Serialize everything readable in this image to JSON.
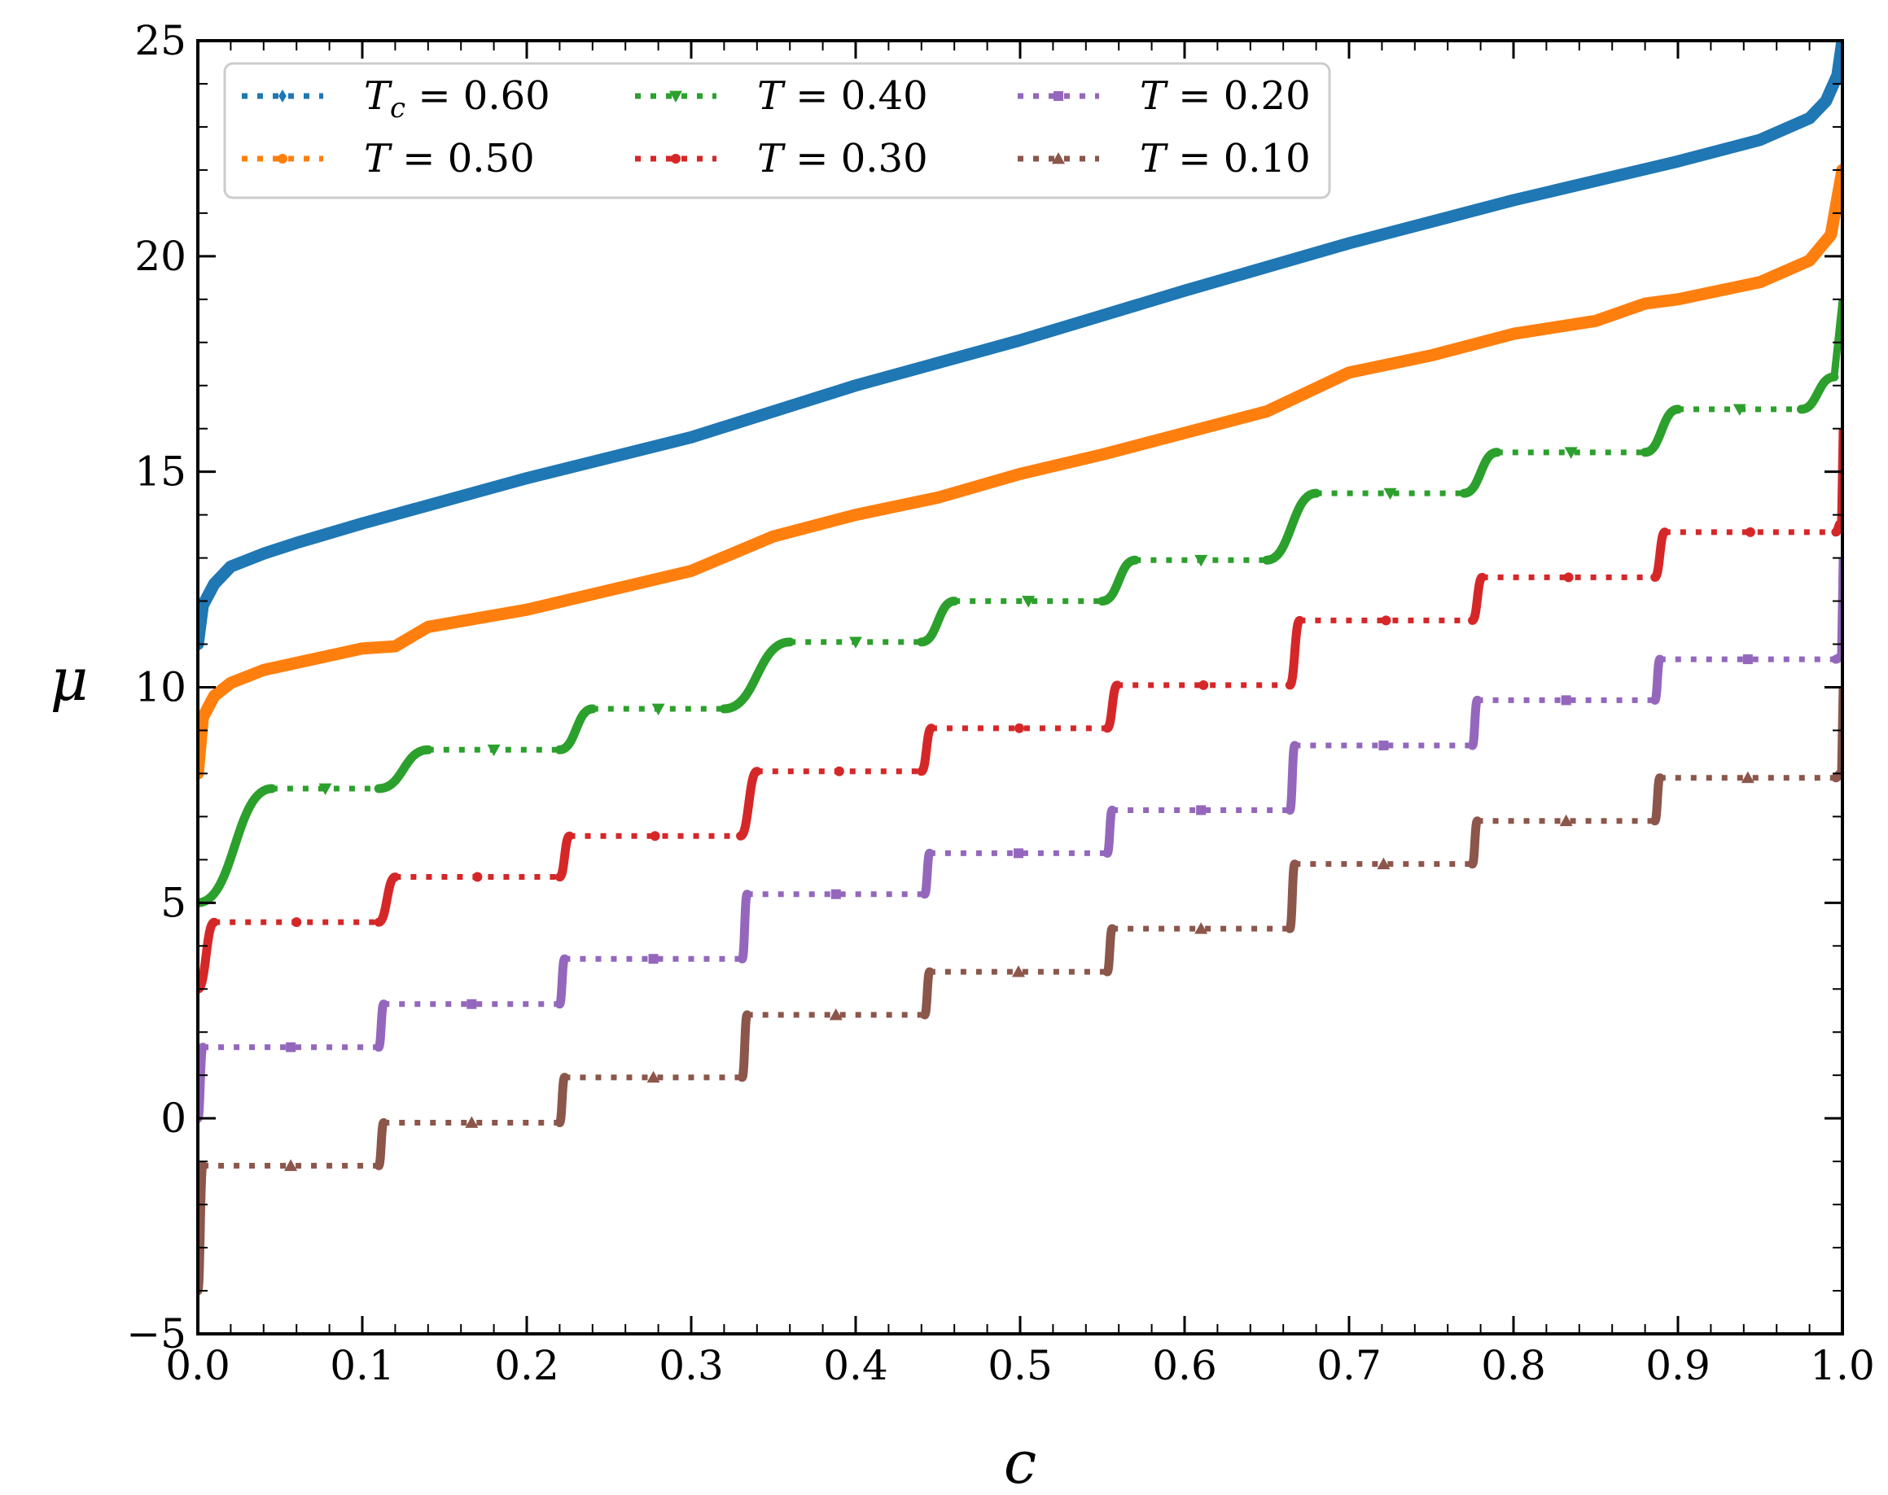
{
  "chart_data": {
    "type": "line",
    "title": "",
    "xlabel": "c",
    "ylabel": "μ",
    "xlim": [
      0.0,
      1.0
    ],
    "ylim": [
      -5,
      25
    ],
    "xticks": [
      "0.0",
      "0.1",
      "0.2",
      "0.3",
      "0.4",
      "0.5",
      "0.6",
      "0.7",
      "0.8",
      "0.9",
      "1.0"
    ],
    "yticks": [
      "−5",
      "0",
      "5",
      "10",
      "15",
      "20",
      "25"
    ],
    "grid": false,
    "legend_position": "top-left",
    "series": [
      {
        "name": "Tc = 0.60",
        "label_var": "T",
        "label_sub": "c",
        "label_rest": " = 0.60",
        "color": "#1f77b4",
        "marker": "diamond",
        "kind": "smooth",
        "points": [
          [
            0.0,
            11.0
          ],
          [
            0.003,
            11.9
          ],
          [
            0.01,
            12.4
          ],
          [
            0.02,
            12.8
          ],
          [
            0.04,
            13.1
          ],
          [
            0.06,
            13.35
          ],
          [
            0.1,
            13.8
          ],
          [
            0.2,
            14.85
          ],
          [
            0.3,
            15.8
          ],
          [
            0.4,
            17.0
          ],
          [
            0.5,
            18.05
          ],
          [
            0.6,
            19.2
          ],
          [
            0.7,
            20.3
          ],
          [
            0.8,
            21.3
          ],
          [
            0.9,
            22.2
          ],
          [
            0.95,
            22.7
          ],
          [
            0.98,
            23.2
          ],
          [
            0.99,
            23.6
          ],
          [
            0.997,
            24.2
          ],
          [
            1.0,
            25.0
          ]
        ]
      },
      {
        "name": "T = 0.50",
        "label_var": "T",
        "label_sub": "",
        "label_rest": " = 0.50",
        "color": "#ff7f0e",
        "marker": "circle",
        "kind": "smooth",
        "points": [
          [
            0.0,
            8.0
          ],
          [
            0.003,
            9.3
          ],
          [
            0.01,
            9.8
          ],
          [
            0.02,
            10.1
          ],
          [
            0.04,
            10.4
          ],
          [
            0.1,
            10.9
          ],
          [
            0.12,
            10.95
          ],
          [
            0.14,
            11.4
          ],
          [
            0.2,
            11.8
          ],
          [
            0.3,
            12.7
          ],
          [
            0.35,
            13.5
          ],
          [
            0.4,
            14.0
          ],
          [
            0.45,
            14.4
          ],
          [
            0.5,
            14.95
          ],
          [
            0.55,
            15.4
          ],
          [
            0.6,
            15.9
          ],
          [
            0.65,
            16.4
          ],
          [
            0.7,
            17.3
          ],
          [
            0.75,
            17.7
          ],
          [
            0.8,
            18.2
          ],
          [
            0.85,
            18.5
          ],
          [
            0.88,
            18.9
          ],
          [
            0.9,
            19.0
          ],
          [
            0.95,
            19.4
          ],
          [
            0.98,
            19.9
          ],
          [
            0.993,
            20.5
          ],
          [
            1.0,
            22.0
          ]
        ]
      },
      {
        "name": "T = 0.40",
        "label_var": "T",
        "label_sub": "",
        "label_rest": " = 0.40",
        "color": "#2ca02c",
        "marker": "triangle-down",
        "kind": "steps",
        "tail_top": 19.0,
        "levels": [
          {
            "x0": 0.0,
            "y0": 5.0,
            "x1": 0.045,
            "y1": 7.65
          },
          {
            "x0": 0.11,
            "y0": 7.65,
            "x1": 0.14,
            "y1": 8.55
          },
          {
            "x0": 0.22,
            "y0": 8.55,
            "x1": 0.24,
            "y1": 9.5
          },
          {
            "x0": 0.32,
            "y0": 9.5,
            "x1": 0.36,
            "y1": 11.05
          },
          {
            "x0": 0.44,
            "y0": 11.05,
            "x1": 0.46,
            "y1": 12.0
          },
          {
            "x0": 0.55,
            "y0": 12.0,
            "x1": 0.57,
            "y1": 12.95
          },
          {
            "x0": 0.65,
            "y0": 12.95,
            "x1": 0.68,
            "y1": 14.5
          },
          {
            "x0": 0.77,
            "y0": 14.5,
            "x1": 0.79,
            "y1": 15.45
          },
          {
            "x0": 0.88,
            "y0": 15.45,
            "x1": 0.9,
            "y1": 16.45
          },
          {
            "x0": 0.975,
            "y0": 16.45,
            "x1": 0.995,
            "y1": 17.2
          }
        ]
      },
      {
        "name": "T = 0.30",
        "label_var": "T",
        "label_sub": "",
        "label_rest": " = 0.30",
        "color": "#d62728",
        "marker": "circle",
        "kind": "steps",
        "tail_top": 16.0,
        "levels": [
          {
            "x0": 0.0,
            "y0": 3.0,
            "x1": 0.01,
            "y1": 4.55
          },
          {
            "x0": 0.11,
            "y0": 4.55,
            "x1": 0.12,
            "y1": 5.6
          },
          {
            "x0": 0.22,
            "y0": 5.6,
            "x1": 0.226,
            "y1": 6.55
          },
          {
            "x0": 0.33,
            "y0": 6.55,
            "x1": 0.34,
            "y1": 8.05
          },
          {
            "x0": 0.44,
            "y0": 8.05,
            "x1": 0.446,
            "y1": 9.05
          },
          {
            "x0": 0.553,
            "y0": 9.05,
            "x1": 0.559,
            "y1": 10.05
          },
          {
            "x0": 0.664,
            "y0": 10.05,
            "x1": 0.67,
            "y1": 11.55
          },
          {
            "x0": 0.775,
            "y0": 11.55,
            "x1": 0.781,
            "y1": 12.55
          },
          {
            "x0": 0.886,
            "y0": 12.55,
            "x1": 0.892,
            "y1": 13.6
          },
          {
            "x0": 0.996,
            "y0": 13.6,
            "x1": 0.999,
            "y1": 13.8
          }
        ]
      },
      {
        "name": "T = 0.20",
        "label_var": "T",
        "label_sub": "",
        "label_rest": " = 0.20",
        "color": "#9467bd",
        "marker": "square",
        "kind": "steps",
        "tail_top": 13.0,
        "levels": [
          {
            "x0": 0.0,
            "y0": 0.0,
            "x1": 0.003,
            "y1": 1.65
          },
          {
            "x0": 0.11,
            "y0": 1.65,
            "x1": 0.113,
            "y1": 2.65
          },
          {
            "x0": 0.22,
            "y0": 2.65,
            "x1": 0.223,
            "y1": 3.7
          },
          {
            "x0": 0.331,
            "y0": 3.7,
            "x1": 0.334,
            "y1": 5.2
          },
          {
            "x0": 0.442,
            "y0": 5.2,
            "x1": 0.445,
            "y1": 6.15
          },
          {
            "x0": 0.553,
            "y0": 6.15,
            "x1": 0.556,
            "y1": 7.15
          },
          {
            "x0": 0.664,
            "y0": 7.15,
            "x1": 0.667,
            "y1": 8.65
          },
          {
            "x0": 0.775,
            "y0": 8.65,
            "x1": 0.778,
            "y1": 9.7
          },
          {
            "x0": 0.886,
            "y0": 9.7,
            "x1": 0.889,
            "y1": 10.65
          },
          {
            "x0": 0.996,
            "y0": 10.65,
            "x1": 0.999,
            "y1": 10.7
          }
        ]
      },
      {
        "name": "T = 0.10",
        "label_var": "T",
        "label_sub": "",
        "label_rest": " = 0.10",
        "color": "#8c564b",
        "marker": "triangle-up",
        "kind": "steps",
        "tail_top": 10.0,
        "levels": [
          {
            "x0": 0.0,
            "y0": -4.0,
            "x1": 0.003,
            "y1": -1.1
          },
          {
            "x0": 0.11,
            "y0": -1.1,
            "x1": 0.113,
            "y1": -0.1
          },
          {
            "x0": 0.22,
            "y0": -0.1,
            "x1": 0.223,
            "y1": 0.95
          },
          {
            "x0": 0.331,
            "y0": 0.95,
            "x1": 0.334,
            "y1": 2.4
          },
          {
            "x0": 0.442,
            "y0": 2.4,
            "x1": 0.445,
            "y1": 3.4
          },
          {
            "x0": 0.553,
            "y0": 3.4,
            "x1": 0.556,
            "y1": 4.4
          },
          {
            "x0": 0.664,
            "y0": 4.4,
            "x1": 0.667,
            "y1": 5.9
          },
          {
            "x0": 0.775,
            "y0": 5.9,
            "x1": 0.778,
            "y1": 6.9
          },
          {
            "x0": 0.886,
            "y0": 6.9,
            "x1": 0.889,
            "y1": 7.9
          },
          {
            "x0": 0.996,
            "y0": 7.9,
            "x1": 0.999,
            "y1": 8.0
          }
        ]
      }
    ]
  }
}
